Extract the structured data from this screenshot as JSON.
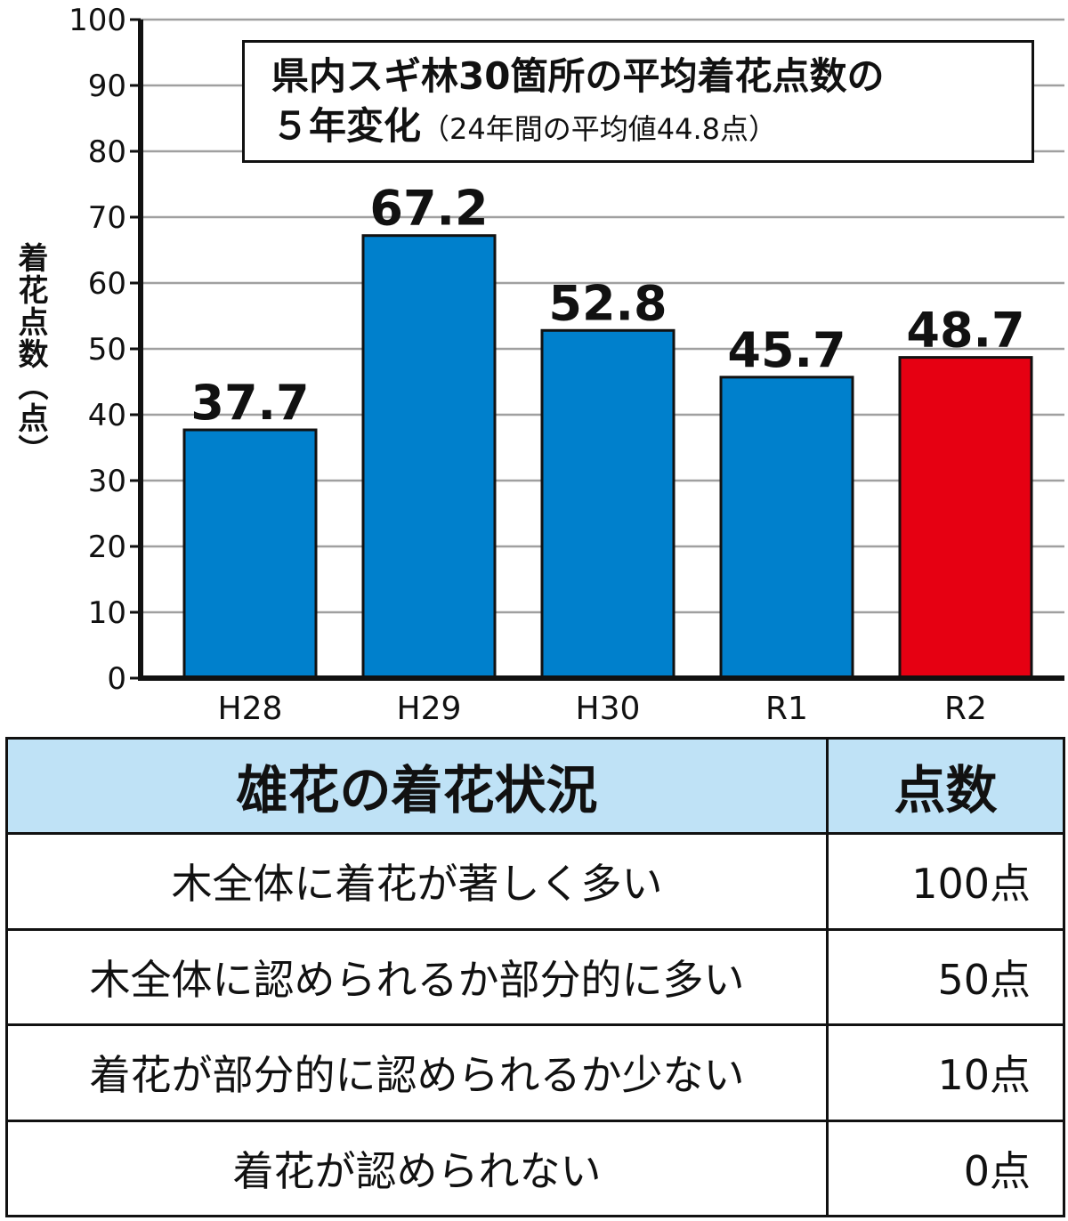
{
  "chart_data": {
    "type": "bar",
    "title": "県内スギ林30箇所の平均着花点数の",
    "title_line2": "５年変化",
    "subtitle": "（24年間の平均値44.8点）",
    "ylabel": "着花点数（点）",
    "xlabel": "",
    "ylim": [
      0,
      100
    ],
    "yticks": [
      0,
      10,
      20,
      30,
      40,
      50,
      60,
      70,
      80,
      90,
      100
    ],
    "grid": true,
    "legend": "none",
    "categories": [
      "H28",
      "H29",
      "H30",
      "R1",
      "R2"
    ],
    "values": [
      37.7,
      67.2,
      52.8,
      45.7,
      48.7
    ],
    "data_labels": [
      "37.7",
      "67.2",
      "52.8",
      "45.7",
      "48.7"
    ],
    "colors": [
      "#0080cc",
      "#0080cc",
      "#0080cc",
      "#0080cc",
      "#e60012"
    ]
  },
  "table": {
    "headers": [
      "雄花の着花状況",
      "点数"
    ],
    "rows": [
      {
        "status": "木全体に着花が著しく多い",
        "points": "100点"
      },
      {
        "status": "木全体に認められるか部分的に多い",
        "points": "50点"
      },
      {
        "status": "着花が部分的に認められるか少ない",
        "points": "10点"
      },
      {
        "status": "着花が認められない",
        "points": "0点"
      }
    ],
    "header_color": "#bfe2f6"
  }
}
